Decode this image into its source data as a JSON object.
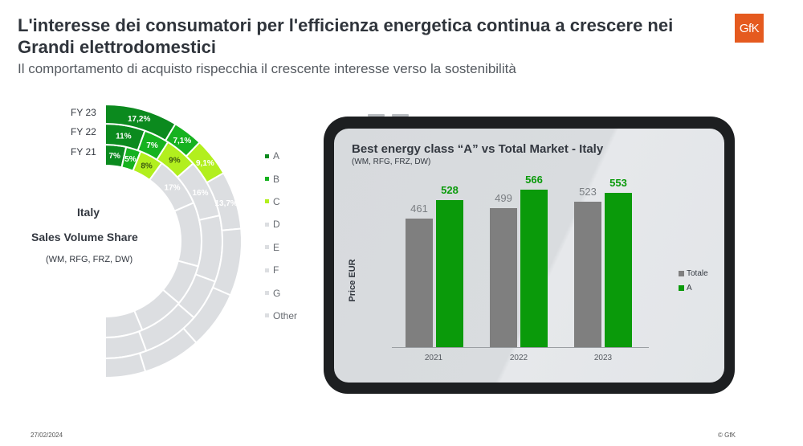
{
  "header": {
    "title": "L'interesse dei consumatori per l'efficienza energetica continua a crescere nei Grandi elettrodomestici",
    "subtitle": "Il comportamento di acquisto rispecchia il crescente interesse verso la sostenibilità",
    "logo": "GfK"
  },
  "donut": {
    "center_title": "Italy",
    "center_subtitle": "Sales Volume Share",
    "center_note": "(WM, RFG, FRZ, DW)",
    "ring_labels": [
      "FY 23",
      "FY 22",
      "FY 21"
    ],
    "legend": [
      {
        "label": "A",
        "color": "#0b8a1e"
      },
      {
        "label": "B",
        "color": "#16b21f"
      },
      {
        "label": "C",
        "color": "#b2ef1e"
      },
      {
        "label": "D",
        "color": "#dcdee1"
      },
      {
        "label": "E",
        "color": "#dcdee1"
      },
      {
        "label": "F",
        "color": "#dcdee1"
      },
      {
        "label": "G",
        "color": "#dcdee1"
      },
      {
        "label": "Other",
        "color": "#dcdee1"
      }
    ]
  },
  "chart_data": [
    {
      "type": "pie",
      "subtype": "half-donut (multi-ring)",
      "title": "Italy Sales Volume Share",
      "subtitle": "(WM, RFG, FRZ, DW)",
      "categories": [
        "A",
        "B",
        "C",
        "D",
        "E",
        "F",
        "G",
        "Other"
      ],
      "series": [
        {
          "name": "FY 21",
          "values": [
            7,
            5,
            8,
            17,
            null,
            null,
            null,
            null
          ],
          "labels": [
            "7%",
            "5%",
            "8%",
            "17%",
            "",
            "",
            "",
            ""
          ]
        },
        {
          "name": "FY 22",
          "values": [
            11,
            7,
            9,
            16,
            null,
            null,
            null,
            null
          ],
          "labels": [
            "11%",
            "7%",
            "9%",
            "16%",
            "",
            "",
            "",
            ""
          ]
        },
        {
          "name": "FY 23",
          "values": [
            17.2,
            7.1,
            9.1,
            13.7,
            null,
            null,
            null,
            null
          ],
          "labels": [
            "17,2%",
            "7,1%",
            "9,1%",
            "13,7%",
            "",
            "",
            "",
            ""
          ]
        }
      ]
    },
    {
      "type": "bar",
      "title": "Best energy class “A” vs Total Market - Italy",
      "subtitle": "(WM, RFG, FRZ, DW)",
      "xlabel": "",
      "ylabel": "Price EUR",
      "categories": [
        "2021",
        "2022",
        "2023"
      ],
      "series": [
        {
          "name": "Totale",
          "color": "#7f7f7f",
          "values": [
            461,
            499,
            523
          ]
        },
        {
          "name": "A",
          "color": "#0a9a0a",
          "values": [
            528,
            566,
            553
          ]
        }
      ],
      "legend_position": "right",
      "grid": false
    }
  ],
  "bar_chart": {
    "title": "Best energy class “A” vs Total Market - Italy",
    "subtitle": "(WM, RFG, FRZ, DW)",
    "ylabel": "Price EUR",
    "categories": [
      "2021",
      "2022",
      "2023"
    ],
    "totale_values": [
      "461",
      "499",
      "523"
    ],
    "a_values": [
      "528",
      "566",
      "553"
    ],
    "legend": [
      "Totale",
      "A"
    ],
    "colors": {
      "totale": "#7f7f7f",
      "a": "#0a9a0a",
      "totale_label": "#7a7e82",
      "a_label": "#0a9a0a"
    }
  },
  "footer": {
    "date": "27/02/2024",
    "copyright": "© GfK"
  }
}
